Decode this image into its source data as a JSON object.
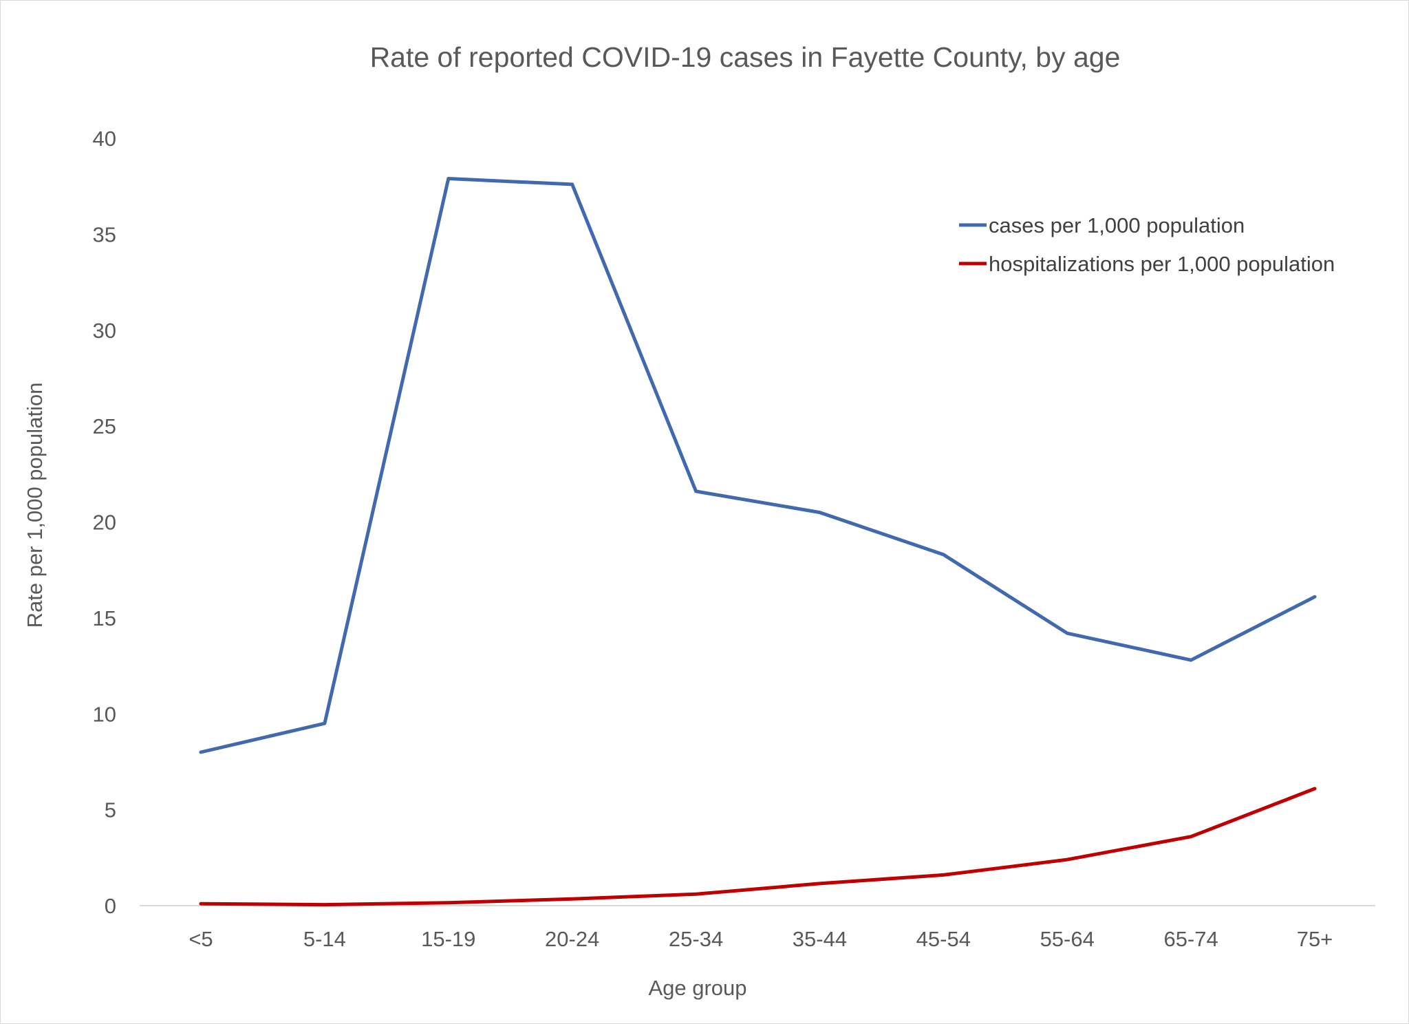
{
  "chart_data": {
    "type": "line",
    "title": "Rate of reported COVID-19 cases in Fayette County, by age",
    "xlabel": "Age group",
    "ylabel": "Rate per 1,000 population",
    "categories": [
      "<5",
      "5-14",
      "15-19",
      "20-24",
      "25-34",
      "35-44",
      "45-54",
      "55-64",
      "65-74",
      "75+"
    ],
    "ylim": [
      0,
      40
    ],
    "yticks": [
      0,
      5,
      10,
      15,
      20,
      25,
      30,
      35,
      40
    ],
    "grid": false,
    "legend_position": "top-right",
    "series": [
      {
        "name": "cases per 1,000 population",
        "color": "#4169b0",
        "values": [
          8.0,
          9.5,
          37.9,
          37.6,
          21.6,
          20.5,
          18.3,
          14.2,
          12.8,
          16.1
        ]
      },
      {
        "name": "hospitalizations per 1,000 population",
        "color": "#c00000",
        "values": [
          0.1,
          0.05,
          0.15,
          0.35,
          0.6,
          1.15,
          1.6,
          2.4,
          3.6,
          6.1
        ]
      }
    ]
  }
}
